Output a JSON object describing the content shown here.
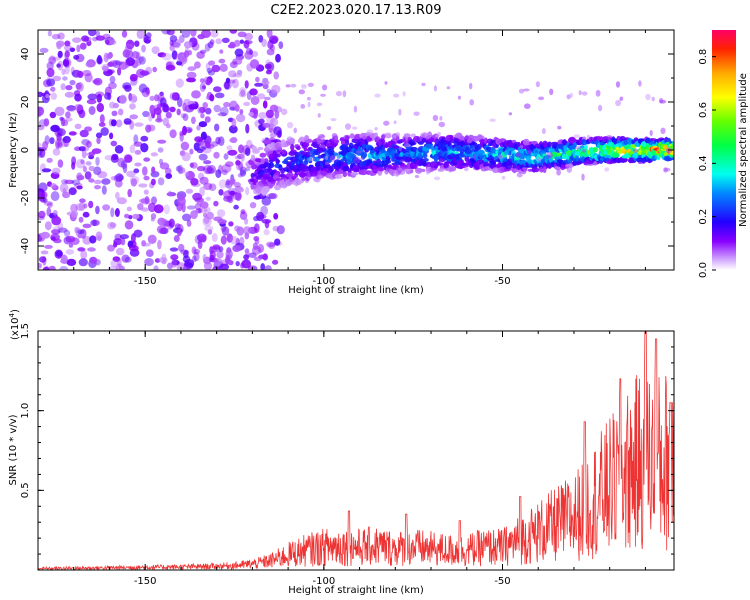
{
  "title": "C2E2.2023.020.17.13.R09",
  "chart_data": [
    {
      "type": "heatmap",
      "xlabel": "Height of straight line (km)",
      "ylabel": "Frequency (Hz)",
      "xlim": [
        -180,
        -2
      ],
      "ylim": [
        -50,
        50
      ],
      "xticks": [
        -150,
        -100,
        -50
      ],
      "yticks": [
        -40,
        -20,
        0,
        20,
        40
      ],
      "xtick_labels": [
        "-150",
        "-100",
        "-50"
      ],
      "ytick_labels": [
        "-40",
        "-20",
        "0",
        "20",
        "40"
      ],
      "colorbar": {
        "label": "Normalized spectral amplitude",
        "range": [
          0.0,
          0.9
        ],
        "ticks": [
          0.0,
          0.2,
          0.4,
          0.6,
          0.8
        ],
        "tick_labels": [
          "0.0",
          "0.2",
          "0.4",
          "0.6",
          "0.8"
        ],
        "colormap": "rainbow (violet-blue-cyan-green-yellow-red)"
      },
      "ridge": {
        "x": [
          -120,
          -110,
          -100,
          -90,
          -80,
          -70,
          -60,
          -50,
          -40,
          -30,
          -20,
          -10,
          -5
        ],
        "frequency": [
          -10,
          -5,
          -3,
          -2,
          -2,
          -1,
          -1,
          -2,
          -3,
          -1,
          0,
          0,
          0
        ],
        "peak_amplitude": [
          0.15,
          0.25,
          0.3,
          0.35,
          0.3,
          0.35,
          0.35,
          0.4,
          0.45,
          0.5,
          0.65,
          0.8,
          0.9
        ]
      },
      "noise_region": {
        "x_range": [
          -180,
          -120
        ],
        "frequency_range": [
          -50,
          50
        ],
        "amplitude_range": [
          0.05,
          0.15
        ]
      }
    },
    {
      "type": "line",
      "xlabel": "Height of straight line (km)",
      "ylabel": "SNR (10 * v/v)",
      "yscale_label": "(x10",
      "yscale_exponent": "4",
      "yscale_close": ")",
      "xlim": [
        -180,
        -2
      ],
      "ylim": [
        0,
        15000
      ],
      "xticks": [
        -150,
        -100,
        -50
      ],
      "yticks": [
        5000,
        10000,
        15000
      ],
      "xtick_labels": [
        "-150",
        "-100",
        "-50"
      ],
      "ytick_labels": [
        "0.5",
        "1.0",
        "1.5"
      ],
      "series": [
        {
          "color": "#ee3333",
          "x": [
            -180,
            -170,
            -160,
            -150,
            -140,
            -130,
            -125,
            -120,
            -115,
            -110,
            -105,
            -100,
            -95,
            -90,
            -85,
            -80,
            -75,
            -70,
            -65,
            -60,
            -55,
            -50,
            -45,
            -40,
            -35,
            -30,
            -25,
            -20,
            -15,
            -10,
            -5,
            -2
          ],
          "y": [
            100,
            120,
            150,
            180,
            200,
            250,
            300,
            400,
            600,
            1000,
            1300,
            1500,
            1600,
            1500,
            1600,
            1400,
            1500,
            1400,
            1300,
            1300,
            1500,
            1500,
            2000,
            2500,
            3000,
            3500,
            4500,
            5500,
            6500,
            7500,
            7000,
            8000
          ],
          "peaks": [
            {
              "x": -93,
              "y": 3700
            },
            {
              "x": -77,
              "y": 3500
            },
            {
              "x": -62,
              "y": 3100
            },
            {
              "x": -45,
              "y": 4600
            },
            {
              "x": -27,
              "y": 9300
            },
            {
              "x": -17,
              "y": 12000
            },
            {
              "x": -10,
              "y": 15000
            },
            {
              "x": -7,
              "y": 14500
            },
            {
              "x": -3,
              "y": 10500
            }
          ]
        }
      ]
    }
  ]
}
